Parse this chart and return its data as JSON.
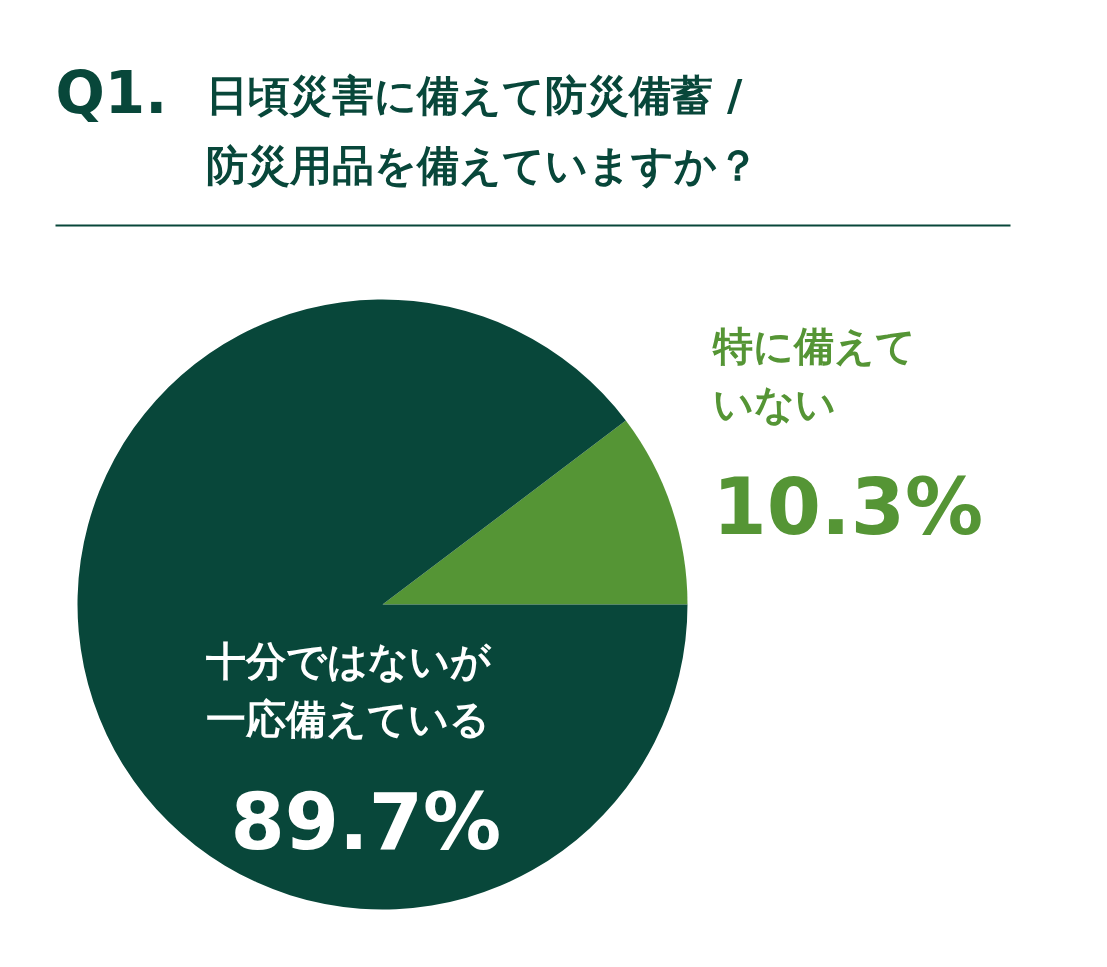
{
  "chart_data": {
    "type": "pie",
    "title": "Q1. 日頃災害に備えて防災備蓄 /\n防災用品を備えていますか？",
    "categories": [
      "特に備えていない",
      "十分ではないが一応備えている"
    ],
    "values": [
      10.3,
      89.7
    ],
    "colors": [
      "#559535",
      "#08473a"
    ],
    "value_labels": [
      "10.3%",
      "89.7%"
    ]
  }
}
